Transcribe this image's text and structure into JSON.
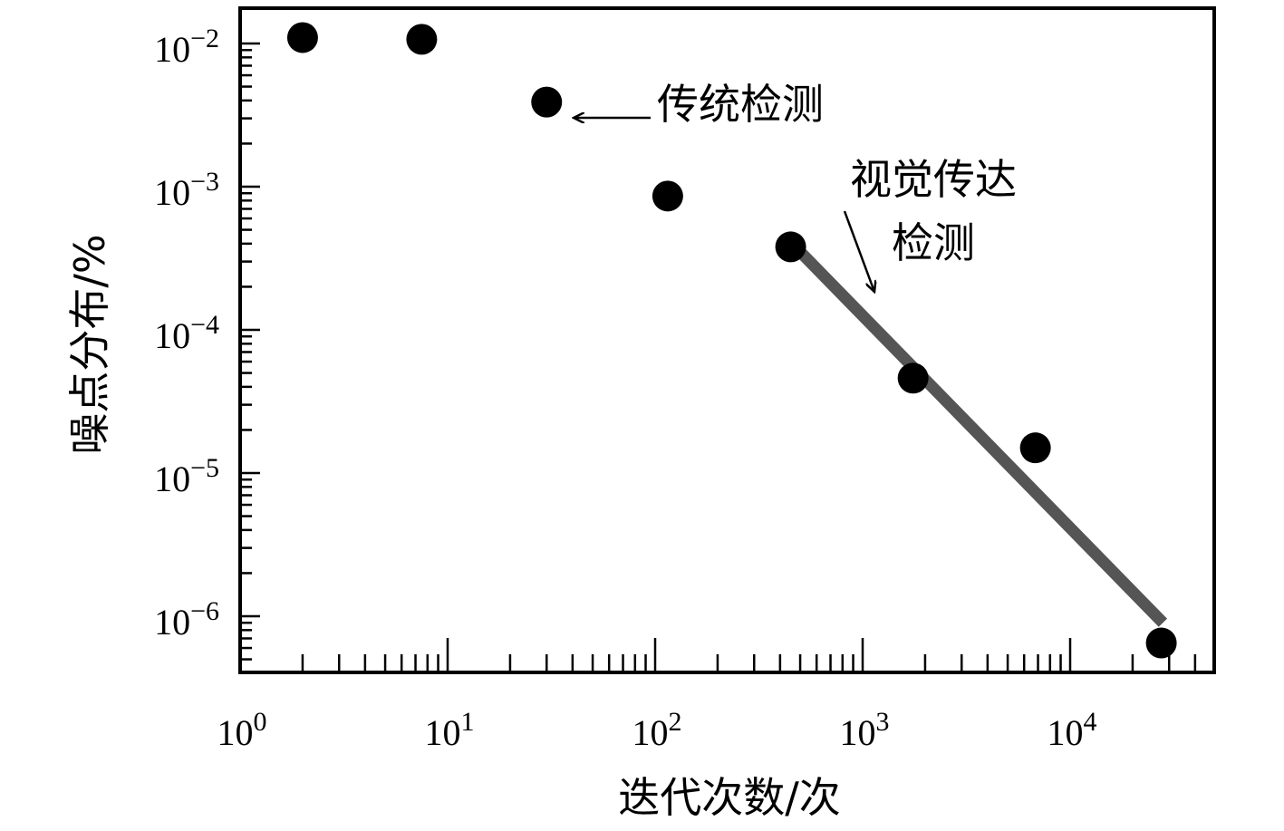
{
  "chart_data": {
    "type": "scatter",
    "title": "",
    "xlabel": "迭代次数/次",
    "ylabel": "噪点分布/%",
    "x_scale": "log",
    "y_scale": "log",
    "xlim": [
      1,
      50000
    ],
    "ylim": [
      4e-07,
      0.018
    ],
    "grid": false,
    "x_ticks": [
      {
        "value": 1,
        "base": "10",
        "exp": "0"
      },
      {
        "value": 10,
        "base": "10",
        "exp": "1"
      },
      {
        "value": 100,
        "base": "10",
        "exp": "2"
      },
      {
        "value": 1000,
        "base": "10",
        "exp": "3"
      },
      {
        "value": 10000,
        "base": "10",
        "exp": "4"
      }
    ],
    "y_ticks": [
      {
        "value": 0.01,
        "base": "10",
        "exp": "−2"
      },
      {
        "value": 0.001,
        "base": "10",
        "exp": "−3"
      },
      {
        "value": 0.0001,
        "base": "10",
        "exp": "−4"
      },
      {
        "value": 1e-05,
        "base": "10",
        "exp": "−5"
      },
      {
        "value": 1e-06,
        "base": "10",
        "exp": "−6"
      }
    ],
    "series": [
      {
        "points": [
          {
            "x": 2,
            "y": 0.011
          },
          {
            "x": 7.5,
            "y": 0.0107
          },
          {
            "x": 30,
            "y": 0.0039
          },
          {
            "x": 115,
            "y": 0.00086
          },
          {
            "x": 450,
            "y": 0.00038
          },
          {
            "x": 1750,
            "y": 4.6e-05
          },
          {
            "x": 6800,
            "y": 1.5e-05
          },
          {
            "x": 27500,
            "y": 6.5e-07
          }
        ],
        "color": "#000000"
      }
    ],
    "fit_line": {
      "from": {
        "x": 450,
        "y": 0.00041
      },
      "to": {
        "x": 28000,
        "y": 9e-07
      },
      "color": "#555555"
    },
    "annotations": [
      {
        "text": "传统检测",
        "points_to": {
          "x": 36,
          "y": 0.003
        }
      },
      {
        "lines": [
          "视觉传达",
          "检测"
        ],
        "points_to": {
          "x": 1000,
          "y": 0.00015
        }
      }
    ]
  }
}
